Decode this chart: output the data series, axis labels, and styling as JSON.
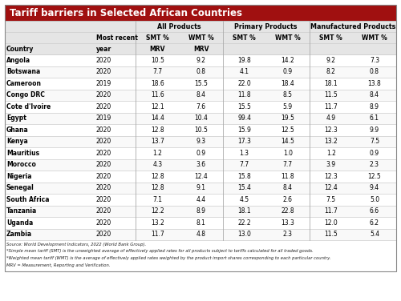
{
  "title": "Tariff barriers in Selected African Countries",
  "title_bg": "#A01010",
  "title_color": "#FFFFFF",
  "countries": [
    [
      "Angola",
      "2020",
      "10.5",
      "9.2",
      "19.8",
      "14.2",
      "9.2",
      "7.3"
    ],
    [
      "Botswana",
      "2020",
      "7.7",
      "0.8",
      "4.1",
      "0.9",
      "8.2",
      "0.8"
    ],
    [
      "Cameroon",
      "2019",
      "18.6",
      "15.5",
      "22.0",
      "18.4",
      "18.1",
      "13.8"
    ],
    [
      "Congo DRC",
      "2020",
      "11.6",
      "8.4",
      "11.8",
      "8.5",
      "11.5",
      "8.4"
    ],
    [
      "Cote d'Ivoire",
      "2020",
      "12.1",
      "7.6",
      "15.5",
      "5.9",
      "11.7",
      "8.9"
    ],
    [
      "Egypt",
      "2019",
      "14.4",
      "10.4",
      "99.4",
      "19.5",
      "4.9",
      "6.1"
    ],
    [
      "Ghana",
      "2020",
      "12.8",
      "10.5",
      "15.9",
      "12.5",
      "12.3",
      "9.9"
    ],
    [
      "Kenya",
      "2020",
      "13.7",
      "9.3",
      "17.3",
      "14.5",
      "13.2",
      "7.5"
    ],
    [
      "Mauritius",
      "2020",
      "1.2",
      "0.9",
      "1.3",
      "1.0",
      "1.2",
      "0.9"
    ],
    [
      "Morocco",
      "2020",
      "4.3",
      "3.6",
      "7.7",
      "7.7",
      "3.9",
      "2.3"
    ],
    [
      "Nigeria",
      "2020",
      "12.8",
      "12.4",
      "15.8",
      "11.8",
      "12.3",
      "12.5"
    ],
    [
      "Senegal",
      "2020",
      "12.8",
      "9.1",
      "15.4",
      "8.4",
      "12.4",
      "9.4"
    ],
    [
      "South Africa",
      "2020",
      "7.1",
      "4.4",
      "4.5",
      "2.6",
      "7.5",
      "5.0"
    ],
    [
      "Tanzania",
      "2020",
      "12.2",
      "8.9",
      "18.1",
      "22.8",
      "11.7",
      "6.6"
    ],
    [
      "Uganda",
      "2020",
      "13.2",
      "8.1",
      "22.2",
      "13.3",
      "12.0",
      "6.2"
    ],
    [
      "Zambia",
      "2020",
      "11.7",
      "4.8",
      "13.0",
      "2.3",
      "11.5",
      "5.4"
    ]
  ],
  "footnotes": [
    "Source: World Development Indicators, 2022 (World Bank Group).",
    "*Simple mean tariff (SMT) is the unweighted average of effectively applied rates for all products subject to tariffs calculated for all traded goods.",
    "*Weighted mean tariff (WMT) is the average of effectively applied rates weighted by the product import shares corresponding to each particular country.",
    "MRV = Measurement, Reporting and Verification."
  ],
  "bg_color": "#FFFFFF",
  "line_color": "#CCCCCC",
  "header_bg": "#E8E8E8",
  "text_color": "#000000"
}
